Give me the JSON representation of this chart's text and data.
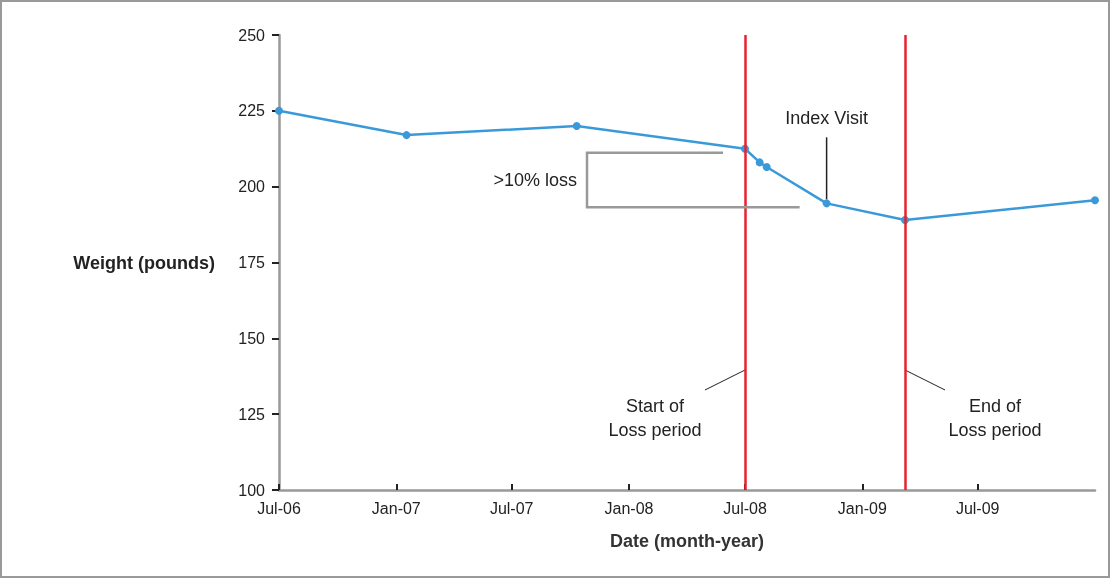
{
  "chart_data": {
    "type": "line",
    "xlabel": "Date (month-year)",
    "ylabel": "Weight (pounds)",
    "x": [
      "2006-07-01",
      "2007-01-17",
      "2007-10-11",
      "2008-07-01",
      "2008-07-24",
      "2008-08-04",
      "2008-11-06",
      "2009-03-09",
      "2010-01-01"
    ],
    "series": [
      {
        "color": "#3a9ad9",
        "values": [
          225,
          217,
          220,
          212.5,
          208,
          206.5,
          194.5,
          189,
          195.5
        ]
      }
    ],
    "marker": "circle",
    "line_style": "solid",
    "grid": false,
    "xlim": [
      "2006-07-01",
      "2010-01-01"
    ],
    "xticks": [
      {
        "value": "2006-07-01",
        "label": "Jul-06"
      },
      {
        "value": "2007-01-01",
        "label": "Jan-07"
      },
      {
        "value": "2007-07-01",
        "label": "Jul-07"
      },
      {
        "value": "2008-01-01",
        "label": "Jan-08"
      },
      {
        "value": "2008-07-01",
        "label": "Jul-08"
      },
      {
        "value": "2009-01-01",
        "label": "Jan-09"
      },
      {
        "value": "2009-07-01",
        "label": "Jul-09"
      }
    ],
    "ylim": [
      100,
      250
    ],
    "yticks": [
      100,
      125,
      150,
      175,
      200,
      225,
      250
    ],
    "ref_lines": [
      {
        "axis": "x",
        "value": "2008-07-01",
        "label": "Start of\nLoss period",
        "color": "#e8212f"
      },
      {
        "axis": "x",
        "value": "2009-03-09",
        "label": "End of\nLoss period",
        "color": "#e8212f"
      }
    ],
    "annotations": [
      ">10% loss",
      {
        "text": "Index Visit",
        "x": "2008-11-06",
        "y": 194.5
      }
    ]
  }
}
